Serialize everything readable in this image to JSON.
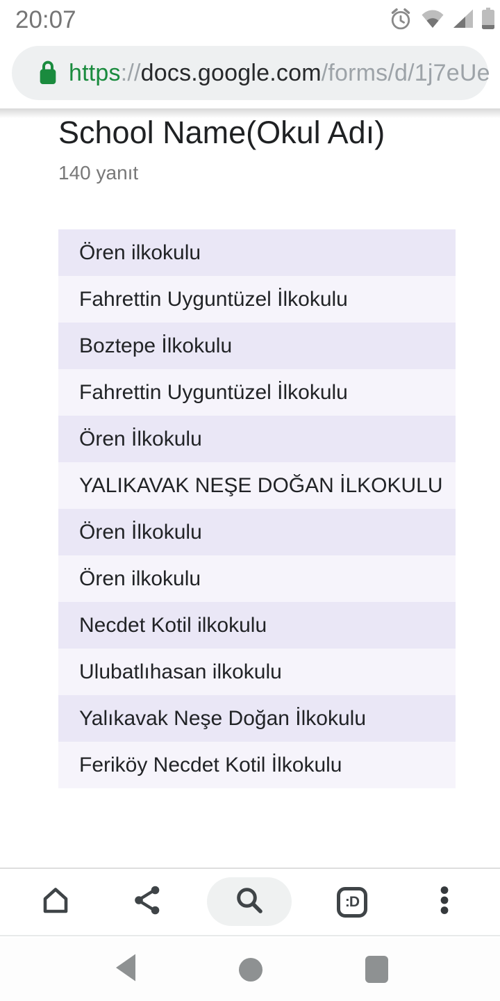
{
  "status_bar": {
    "time": "20:07",
    "icons": [
      "alarm-icon",
      "wifi-icon",
      "cell-signal-icon",
      "battery-icon"
    ]
  },
  "browser": {
    "url": {
      "scheme": "https",
      "separator": "://",
      "domain": "docs.google.com",
      "path": "/forms/d/1j7eUe"
    },
    "toolbar": {
      "tab_count_label": ":D",
      "icons": [
        "home-icon",
        "share-icon",
        "search-icon",
        "tab-switcher-icon",
        "overflow-menu-icon"
      ]
    }
  },
  "page": {
    "title": "School Name(Okul Adı)",
    "response_count": "140 yanıt",
    "responses": [
      "Ören ilkokulu",
      "Fahrettin Uyguntüzel İlkokulu",
      "Boztepe İlkokulu",
      "Fahrettin Uyguntüzel İlkokulu",
      "Ören İlkokulu",
      "YALIKAVAK NEŞE DOĞAN İLKOKULU",
      "Ören İlkokulu",
      "Ören ilkokulu",
      "Necdet Kotil ilkokulu",
      "Ulubatlıhasan ilkokulu",
      "Yalıkavak Neşe Doğan İlkokulu",
      "Feriköy Necdet Kotil İlkokulu"
    ]
  },
  "nav_bar": {
    "icons": [
      "back-icon",
      "home-circle-icon",
      "recents-icon"
    ]
  },
  "colors": {
    "accent_green": "#1a8b3e",
    "row_odd": "#eae7f6",
    "row_even": "#f6f4fb",
    "url_pill": "#eef0f1",
    "toolbar_icon": "#3f4447",
    "nav_icon": "#8e9192",
    "status_icon_light": "#bdbdbd",
    "status_icon_dark": "#757575"
  }
}
